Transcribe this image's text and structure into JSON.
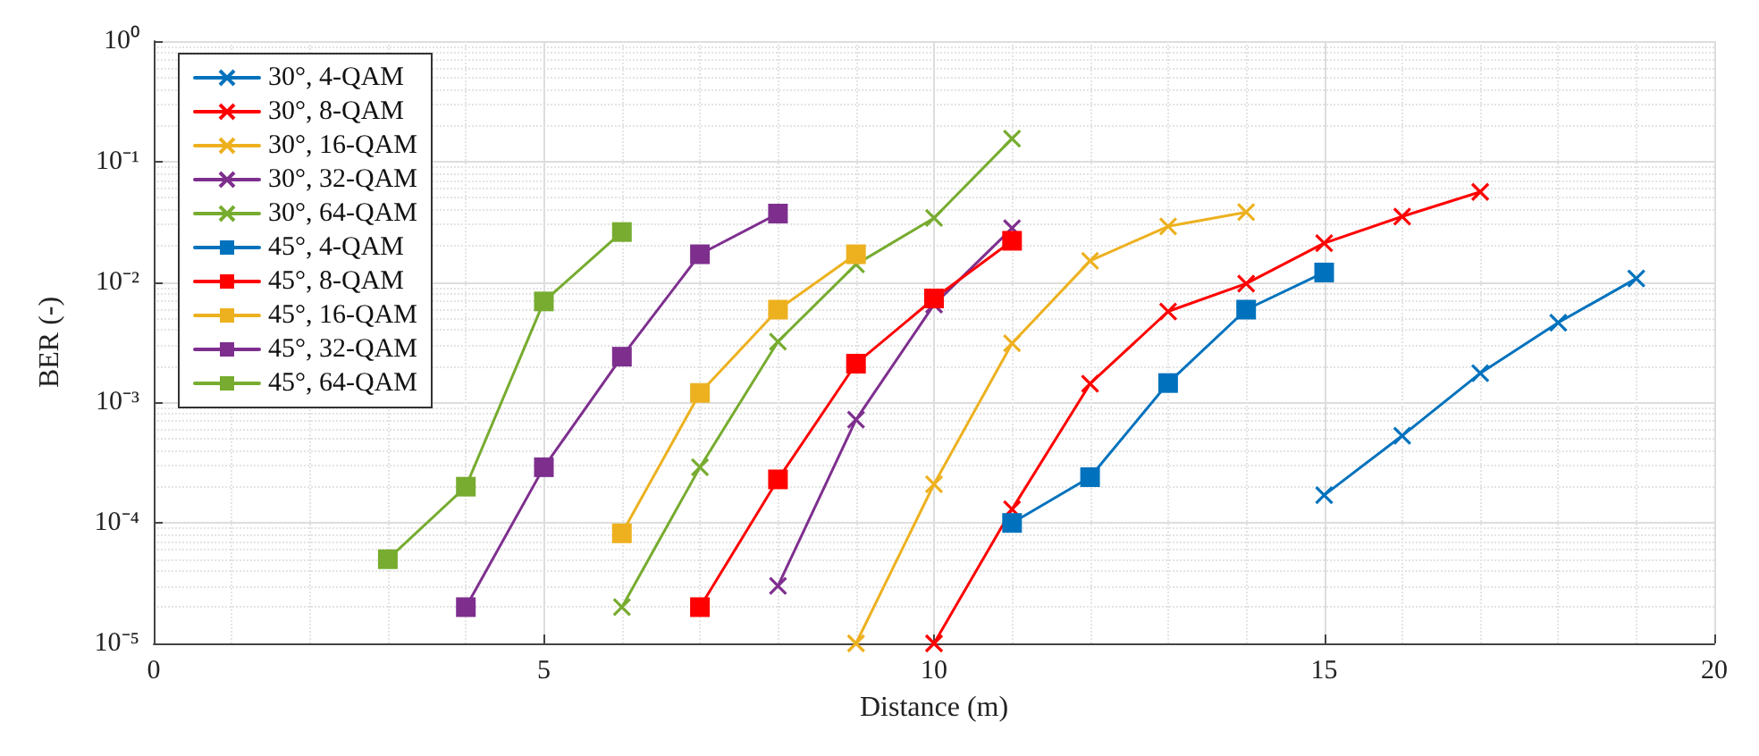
{
  "chart_data": {
    "type": "line",
    "xlabel": "Distance (m)",
    "ylabel": "BER (-)",
    "log": "y",
    "grid": true,
    "legend": "top left",
    "xlim": [
      0,
      20
    ],
    "xticks": [
      0,
      5,
      10,
      15,
      20
    ],
    "ylim": [
      1e-05,
      1
    ],
    "yticks": [
      {
        "value": 1e-05,
        "label": "10⁻⁵"
      },
      {
        "value": 0.0001,
        "label": "10⁻⁴"
      },
      {
        "value": 0.001,
        "label": "10⁻³"
      },
      {
        "value": 0.01,
        "label": "10⁻²"
      },
      {
        "value": 0.1,
        "label": "10⁻¹"
      },
      {
        "value": 1,
        "label": "10⁰"
      }
    ],
    "series": [
      {
        "name": "30°, 4-QAM",
        "color": "#0072bd",
        "marker": "cross",
        "x": [
          15,
          16,
          17,
          18,
          19
        ],
        "values": [
          0.00017,
          0.00053,
          0.00175,
          0.0046,
          0.0107
        ]
      },
      {
        "name": "30°, 8-QAM",
        "color": "#ff0000",
        "marker": "cross",
        "x": [
          10,
          11,
          12,
          13,
          14,
          15,
          16,
          17
        ],
        "values": [
          1e-05,
          0.00013,
          0.00143,
          0.0057,
          0.0097,
          0.021,
          0.035,
          0.056
        ]
      },
      {
        "name": "30°, 16-QAM",
        "color": "#edb120",
        "marker": "cross",
        "x": [
          9,
          10,
          11,
          12,
          13,
          14
        ],
        "values": [
          1e-05,
          0.00021,
          0.0031,
          0.015,
          0.029,
          0.038
        ]
      },
      {
        "name": "30°, 32-QAM",
        "color": "#7e2f8e",
        "marker": "cross",
        "x": [
          8,
          9,
          10,
          11
        ],
        "values": [
          3e-05,
          0.00072,
          0.0065,
          0.028
        ]
      },
      {
        "name": "30°, 64-QAM",
        "color": "#77ac30",
        "marker": "cross",
        "x": [
          6,
          7,
          8,
          9,
          10,
          11
        ],
        "values": [
          2e-05,
          0.00029,
          0.0032,
          0.014,
          0.034,
          0.155
        ]
      },
      {
        "name": "45°, 4-QAM",
        "color": "#0072bd",
        "marker": "square",
        "x": [
          11,
          12,
          13,
          14,
          15
        ],
        "values": [
          0.0001,
          0.00024,
          0.00145,
          0.0059,
          0.012
        ]
      },
      {
        "name": "45°, 8-QAM",
        "color": "#ff0000",
        "marker": "square",
        "x": [
          7,
          8,
          9,
          10,
          11
        ],
        "values": [
          2e-05,
          0.00023,
          0.0021,
          0.0073,
          0.022
        ]
      },
      {
        "name": "45°, 16-QAM",
        "color": "#edb120",
        "marker": "square",
        "x": [
          6,
          7,
          8,
          9
        ],
        "values": [
          8.2e-05,
          0.0012,
          0.0059,
          0.017
        ]
      },
      {
        "name": "45°, 32-QAM",
        "color": "#7e2f8e",
        "marker": "square",
        "x": [
          4,
          5,
          6,
          7,
          8
        ],
        "values": [
          2e-05,
          0.00029,
          0.0024,
          0.017,
          0.037
        ]
      },
      {
        "name": "45°, 64-QAM",
        "color": "#77ac30",
        "marker": "square",
        "x": [
          3,
          4,
          5,
          6
        ],
        "values": [
          5e-05,
          0.0002,
          0.0069,
          0.026
        ]
      }
    ]
  }
}
